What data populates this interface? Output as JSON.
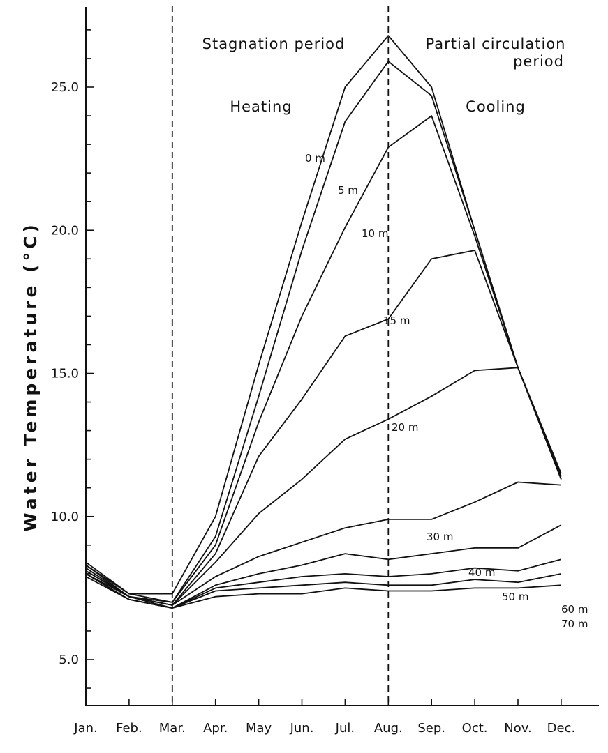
{
  "chart_data": {
    "type": "line",
    "ylabel": "Water Temperature (°C)",
    "xlabel": "",
    "categories": [
      "Jan.",
      "Feb.",
      "Mar.",
      "Apr.",
      "May",
      "Jun.",
      "Jul.",
      "Aug.",
      "Sep.",
      "Oct.",
      "Nov.",
      "Dec."
    ],
    "ylim": [
      4.0,
      28.5
    ],
    "yticks": [
      5.0,
      10.0,
      15.0,
      20.0,
      25.0
    ],
    "ytick_labels": [
      "5.0",
      "10.0",
      "15.0",
      "20.0",
      "25.0"
    ],
    "grid": false,
    "period_lines": [
      "Mar.",
      "Aug."
    ],
    "annotations": {
      "stagnation": "Stagnation period",
      "partial_line1": "Partial circulation",
      "partial_line2": "period",
      "heating": "Heating",
      "cooling": "Cooling"
    },
    "series": [
      {
        "name": "0 m",
        "values": [
          8.4,
          7.3,
          7.3,
          10.0,
          15.3,
          20.3,
          25.0,
          26.8,
          25.0,
          20.0,
          15.2,
          11.5
        ]
      },
      {
        "name": "5 m",
        "values": [
          8.3,
          7.3,
          7.0,
          9.3,
          14.2,
          19.3,
          23.8,
          25.9,
          24.7,
          20.0,
          15.2,
          11.4
        ]
      },
      {
        "name": "10 m",
        "values": [
          8.3,
          7.2,
          7.0,
          9.0,
          13.3,
          17.0,
          20.1,
          22.9,
          24.0,
          19.8,
          15.2,
          11.3
        ]
      },
      {
        "name": "15 m",
        "values": [
          8.2,
          7.2,
          6.9,
          8.7,
          12.1,
          14.1,
          16.3,
          16.9,
          19.0,
          19.3,
          15.2,
          11.3
        ]
      },
      {
        "name": "20 m",
        "values": [
          8.1,
          7.2,
          6.9,
          8.4,
          10.1,
          11.3,
          12.7,
          13.4,
          14.2,
          15.1,
          15.2,
          11.4
        ]
      },
      {
        "name": "30 m",
        "values": [
          8.1,
          7.2,
          6.9,
          7.9,
          8.6,
          9.1,
          9.6,
          9.9,
          9.9,
          10.5,
          11.2,
          11.1
        ]
      },
      {
        "name": "40 m",
        "values": [
          8.0,
          7.2,
          6.8,
          7.6,
          8.0,
          8.3,
          8.7,
          8.5,
          8.7,
          8.9,
          8.9,
          9.7
        ]
      },
      {
        "name": "50 m",
        "values": [
          8.0,
          7.1,
          6.8,
          7.5,
          7.7,
          7.9,
          8.0,
          7.9,
          8.0,
          8.2,
          8.1,
          8.5
        ]
      },
      {
        "name": "60 m",
        "values": [
          8.0,
          7.1,
          6.8,
          7.4,
          7.5,
          7.6,
          7.7,
          7.6,
          7.6,
          7.8,
          7.7,
          8.0
        ]
      },
      {
        "name": "70 m",
        "values": [
          7.9,
          7.1,
          6.8,
          7.2,
          7.3,
          7.3,
          7.5,
          7.4,
          7.4,
          7.5,
          7.5,
          7.6
        ]
      }
    ]
  }
}
